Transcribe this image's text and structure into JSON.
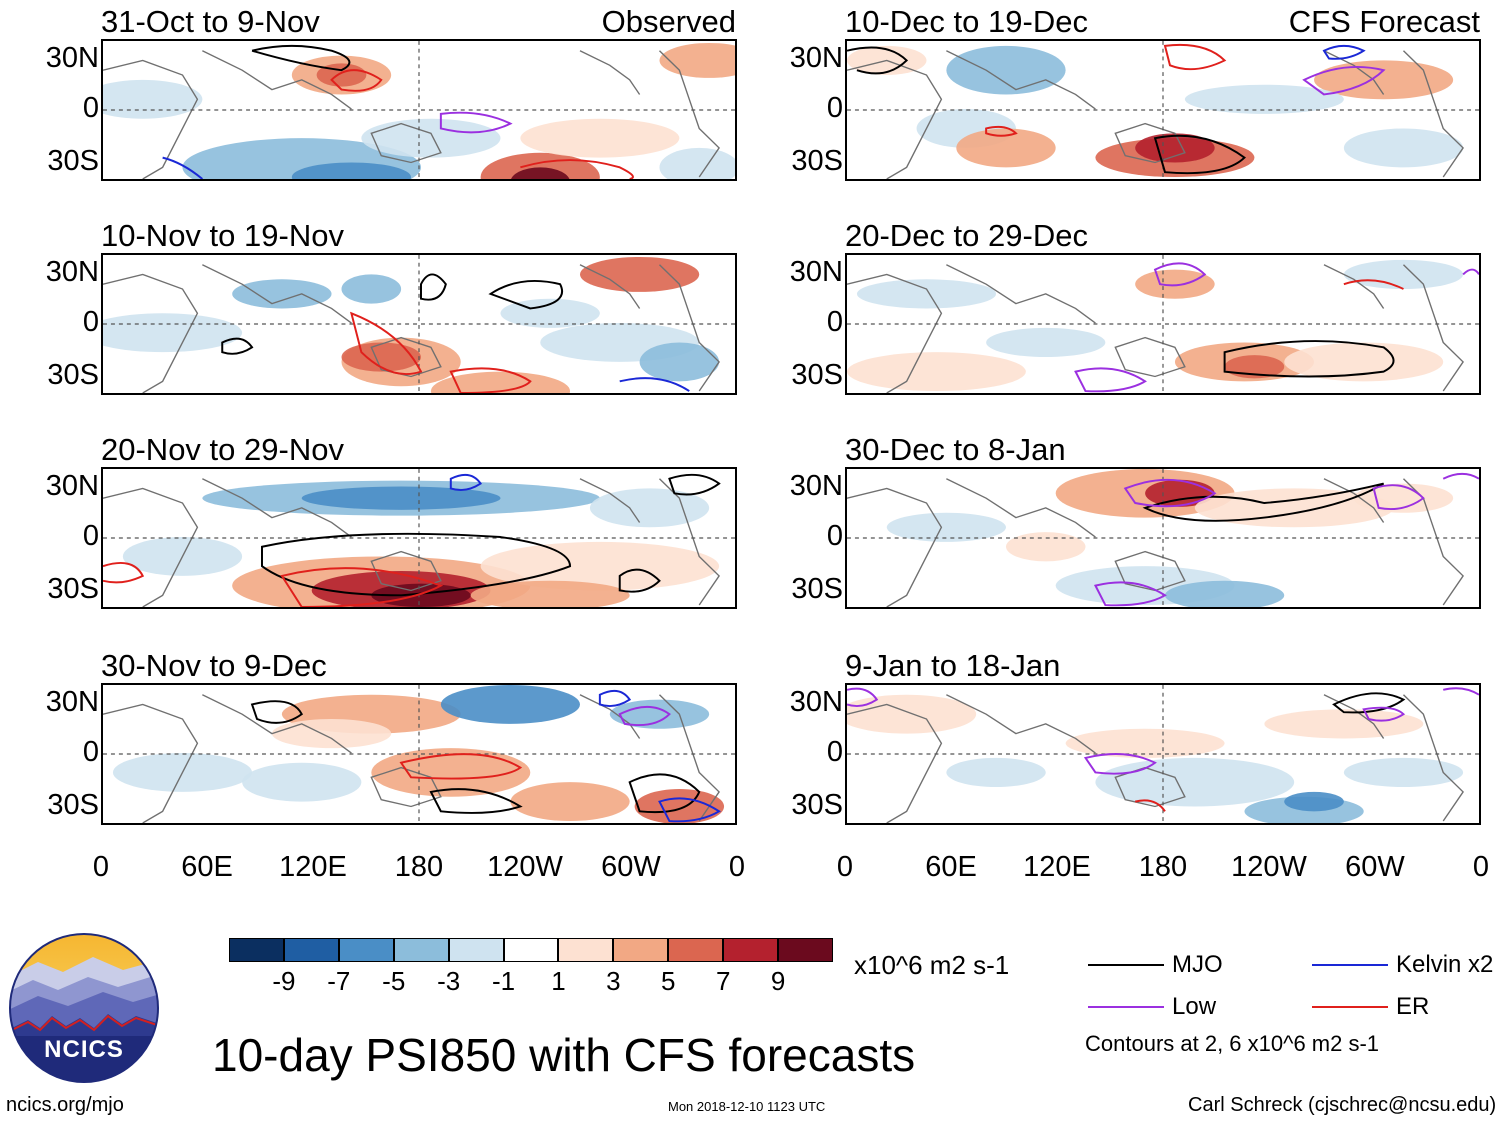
{
  "labels": {
    "observed": "Observed",
    "forecast": "CFS Forecast",
    "units": "x10^6 m2 s-1",
    "main_title": "10-day PSI850 with CFS forecasts",
    "website": "ncics.org/mjo",
    "timestamp": "Mon 2018-12-10 1123 UTC",
    "author": "Carl Schreck (cjschrec@ncsu.edu)",
    "contours_note": "Contours at 2, 6 x10^6 m2 s-1",
    "logo_text": "NCICS"
  },
  "y_ticks": [
    "30N",
    "0",
    "30S"
  ],
  "x_ticks": [
    "0",
    "60E",
    "120E",
    "180",
    "120W",
    "60W",
    "0"
  ],
  "panels": [
    {
      "title": "31-Oct to 9-Nov",
      "kind": "observed"
    },
    {
      "title": "10-Nov to 19-Nov",
      "kind": "observed"
    },
    {
      "title": "20-Nov to 29-Nov",
      "kind": "observed"
    },
    {
      "title": "30-Nov to 9-Dec",
      "kind": "observed"
    },
    {
      "title": "10-Dec to 19-Dec",
      "kind": "forecast"
    },
    {
      "title": "20-Dec to 29-Dec",
      "kind": "forecast"
    },
    {
      "title": "30-Dec to 8-Jan",
      "kind": "forecast"
    },
    {
      "title": "9-Jan to 18-Jan",
      "kind": "forecast"
    }
  ],
  "colorbar": {
    "colors": [
      "#0b2f60",
      "#1f5ea3",
      "#4a8ec6",
      "#8cbddb",
      "#cfe3f0",
      "#ffffff",
      "#fde1d2",
      "#f2a884",
      "#db6650",
      "#b4212e",
      "#6b0a1e"
    ],
    "tick_labels": [
      "-9",
      "-7",
      "-5",
      "-3",
      "-1",
      "1",
      "3",
      "5",
      "7",
      "9"
    ]
  },
  "legend": [
    {
      "label": "MJO",
      "color": "#000000"
    },
    {
      "label": "Kelvin x2",
      "color": "#1a28d6"
    },
    {
      "label": "Low",
      "color": "#9b30e0"
    },
    {
      "label": "ER",
      "color": "#e0201c"
    }
  ]
}
